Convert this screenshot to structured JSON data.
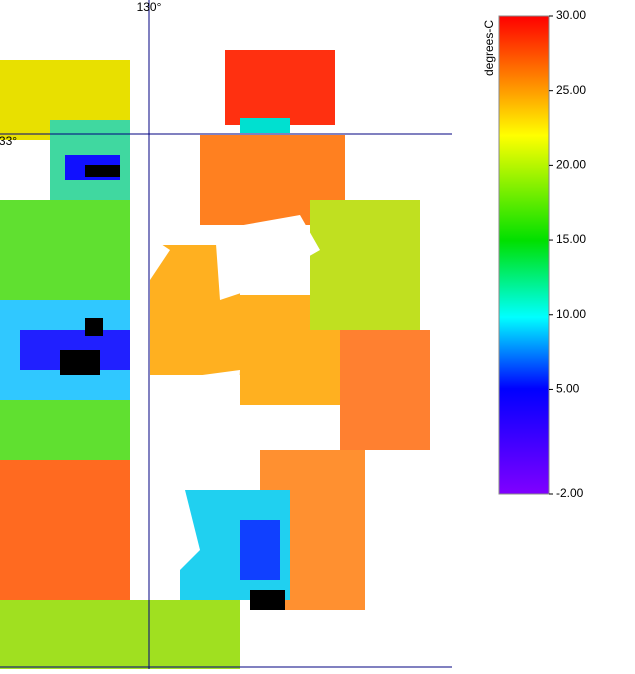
{
  "map": {
    "meridian_label": "130°",
    "parallel_label": "33°"
  },
  "colorbar": {
    "title": "degrees-C",
    "range": [
      -2,
      30
    ],
    "ticks": [
      {
        "value": 30,
        "label": "30.00"
      },
      {
        "value": 25,
        "label": "25.00"
      },
      {
        "value": 20,
        "label": "20.00"
      },
      {
        "value": 15,
        "label": "15.00"
      },
      {
        "value": 10,
        "label": "10.00"
      },
      {
        "value": 5,
        "label": "5.00"
      },
      {
        "value": -2,
        "label": "-2.00"
      }
    ]
  }
}
